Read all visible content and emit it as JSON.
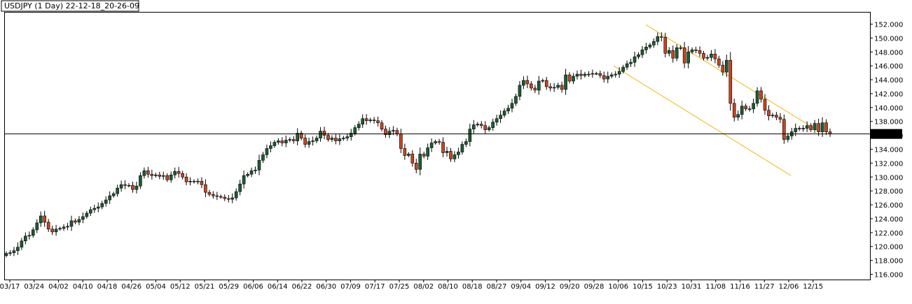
{
  "window": {
    "title": "USDJPY (1 Day) 22-12-18_20-26-09"
  },
  "chart_data": {
    "type": "candlestick",
    "title": "USDJPY (1 Day) 22-12-18_20-26-09",
    "ylim": [
      116,
      152
    ],
    "y_ticks": [
      "152.000",
      "150.000",
      "148.000",
      "146.000",
      "144.000",
      "142.000",
      "140.000",
      "138.000",
      "136.000",
      "134.000",
      "132.000",
      "130.000",
      "128.000",
      "126.000",
      "124.000",
      "122.000",
      "120.000",
      "118.000",
      "116.000"
    ],
    "x_ticks": [
      "03/17",
      "03/24",
      "04/02",
      "04/10",
      "04/18",
      "04/26",
      "05/04",
      "05/12",
      "05/21",
      "05/29",
      "06/06",
      "06/14",
      "06/22",
      "06/30",
      "07/09",
      "07/17",
      "07/25",
      "08/02",
      "08/10",
      "08/18",
      "08/27",
      "09/04",
      "09/12",
      "09/20",
      "09/28",
      "10/06",
      "10/15",
      "10/23",
      "10/31",
      "11/08",
      "11/16",
      "11/27",
      "12/06",
      "12/15"
    ],
    "current_price": "136.197",
    "current_price_value": 136.197,
    "colors": {
      "up": "#1c5e34",
      "down": "#c8461e",
      "channel": "#f2c230",
      "price_line": "#000000"
    },
    "channel": {
      "upper": [
        [
          0.7412,
          151.9
        ],
        [
          0.9407,
          136.6
        ]
      ],
      "lower": [
        [
          0.7035,
          146.0
        ],
        [
          0.9087,
          130.2
        ]
      ]
    },
    "close": [
      119.0,
      119.1,
      119.4,
      119.9,
      120.8,
      121.5,
      121.6,
      122.4,
      123.4,
      124.4,
      123.5,
      122.5,
      122.1,
      122.5,
      122.6,
      122.8,
      122.9,
      123.7,
      123.5,
      123.9,
      124.3,
      124.8,
      125.3,
      125.5,
      125.7,
      126.2,
      126.7,
      127.3,
      127.6,
      128.4,
      128.9,
      128.8,
      128.8,
      128.2,
      128.7,
      130.2,
      130.9,
      130.4,
      130.2,
      130.3,
      130.1,
      130.2,
      129.6,
      130.3,
      130.8,
      130.5,
      130.0,
      129.3,
      129.4,
      129.3,
      129.4,
      128.9,
      127.8,
      127.5,
      127.3,
      127.2,
      127.1,
      126.9,
      126.8,
      127.0,
      127.9,
      129.0,
      130.2,
      130.4,
      130.9,
      131.0,
      132.4,
      133.2,
      134.1,
      134.5,
      135.0,
      135.2,
      134.9,
      135.3,
      135.4,
      135.2,
      136.3,
      135.6,
      134.7,
      135.1,
      135.2,
      135.6,
      136.6,
      136.0,
      135.4,
      135.6,
      135.2,
      135.5,
      135.6,
      135.8,
      136.3,
      137.1,
      137.6,
      138.4,
      138.1,
      138.2,
      138.1,
      137.8,
      136.9,
      136.1,
      136.6,
      136.7,
      136.2,
      134.1,
      133.1,
      133.3,
      132.0,
      131.1,
      133.3,
      133.0,
      134.2,
      134.9,
      135.1,
      135.0,
      133.5,
      133.7,
      132.6,
      133.2,
      133.6,
      134.7,
      135.1,
      136.9,
      137.5,
      137.6,
      137.4,
      136.8,
      137.1,
      137.9,
      138.4,
      138.9,
      139.5,
      139.9,
      140.6,
      141.6,
      143.2,
      143.9,
      143.4,
      142.8,
      142.5,
      143.8,
      143.9,
      143.0,
      142.8,
      142.9,
      143.2,
      142.6,
      144.7,
      143.8,
      144.5,
      144.8,
      144.6,
      144.8,
      144.8,
      144.9,
      144.9,
      144.6,
      144.1,
      144.5,
      144.7,
      144.8,
      145.2,
      145.8,
      146.3,
      146.5,
      147.3,
      147.6,
      148.3,
      148.7,
      149.0,
      149.5,
      150.2,
      150.1,
      147.8,
      148.2,
      147.1,
      148.6,
      148.6,
      146.4,
      148.0,
      148.3,
      148.2,
      147.8,
      147.1,
      147.2,
      147.7,
      147.0,
      146.1,
      145.1,
      146.8,
      140.6,
      138.6,
      139.0,
      140.2,
      139.8,
      139.8,
      140.6,
      142.4,
      141.2,
      139.6,
      138.8,
      138.9,
      138.6,
      138.3,
      135.4,
      135.9,
      136.5,
      137.0,
      136.9,
      137.0,
      137.4,
      136.8,
      137.7,
      136.5,
      137.8,
      136.5,
      136.2
    ],
    "ohlc_note": "close series read from the plot; each candle also has an open/high/low"
  }
}
